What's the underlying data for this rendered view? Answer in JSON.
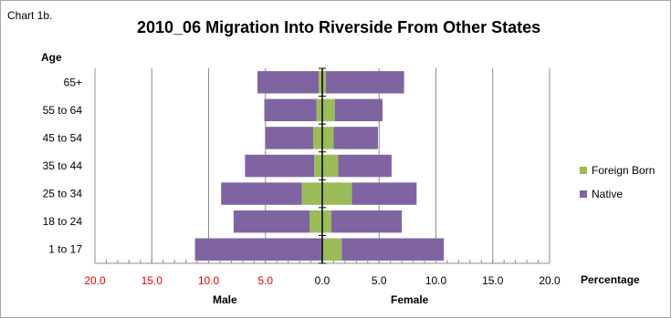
{
  "chart_data": {
    "type": "bar",
    "label": "Chart 1b.",
    "title": "2010_06 Migration Into Riverside From Other States",
    "ylabel": "Age",
    "xlabel": "Percentage",
    "left_label": "Male",
    "right_label": "Female",
    "categories": [
      "1 to 17",
      "18 to 24",
      "25 to 34",
      "35 to 44",
      "45 to 54",
      "55 to 64",
      "65+"
    ],
    "series": [
      {
        "name": "Foreign Born",
        "color": "#9bbb59",
        "male": [
          0.0,
          1.1,
          1.8,
          0.7,
          0.8,
          0.5,
          0.3
        ],
        "female": [
          1.7,
          0.8,
          2.6,
          1.4,
          1.0,
          1.1,
          0.3
        ]
      },
      {
        "name": "Native",
        "color": "#8064a2",
        "male": [
          11.2,
          6.7,
          7.1,
          6.1,
          4.2,
          4.6,
          5.4
        ],
        "female": [
          9.0,
          6.2,
          5.7,
          4.7,
          3.9,
          4.2,
          6.9
        ]
      }
    ],
    "xticks": [
      "20.0",
      "15.0",
      "10.0",
      "5.0",
      "0.0",
      "5.0",
      "10.0",
      "15.0",
      "20.0"
    ],
    "xlim": [
      -20,
      20
    ],
    "grid": true,
    "legend_position": "right"
  }
}
